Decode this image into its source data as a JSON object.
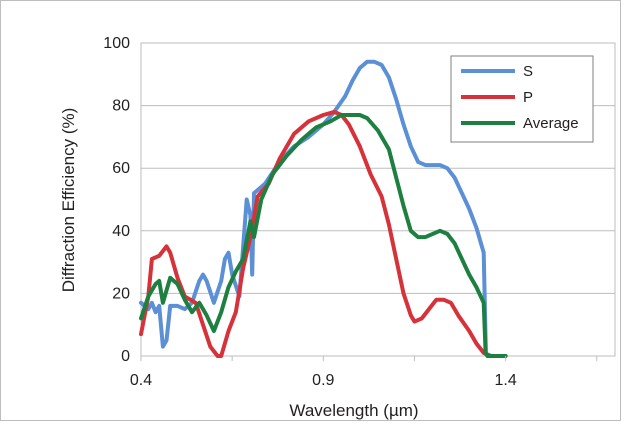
{
  "chart_data": {
    "type": "line",
    "title": "",
    "xlabel": "Wavelength (µm)",
    "ylabel": "Diffraction Efficiency (%)",
    "xlim": [
      0.4,
      1.7
    ],
    "ylim": [
      0,
      100
    ],
    "x_ticks": [
      0.4,
      0.9,
      1.4
    ],
    "x_tick_labels": [
      "0.4",
      "0.9",
      "1.4"
    ],
    "y_ticks": [
      0,
      20,
      40,
      60,
      80,
      100
    ],
    "y_tick_labels": [
      "0",
      "20",
      "40",
      "60",
      "80",
      "100"
    ],
    "grid": "horizontal",
    "legend_position": "top-right",
    "series": [
      {
        "name": "S",
        "color": "#5b8fd6",
        "points": [
          [
            0.4,
            17
          ],
          [
            0.42,
            15
          ],
          [
            0.43,
            17
          ],
          [
            0.44,
            14
          ],
          [
            0.45,
            16
          ],
          [
            0.46,
            3
          ],
          [
            0.47,
            5
          ],
          [
            0.48,
            16
          ],
          [
            0.5,
            16
          ],
          [
            0.52,
            15
          ],
          [
            0.54,
            17
          ],
          [
            0.56,
            24
          ],
          [
            0.57,
            26
          ],
          [
            0.58,
            24
          ],
          [
            0.6,
            17
          ],
          [
            0.62,
            24
          ],
          [
            0.63,
            31
          ],
          [
            0.64,
            33
          ],
          [
            0.65,
            26
          ],
          [
            0.67,
            19
          ],
          [
            0.69,
            50
          ],
          [
            0.7,
            45
          ],
          [
            0.705,
            26
          ],
          [
            0.71,
            52
          ],
          [
            0.74,
            55
          ],
          [
            0.78,
            62
          ],
          [
            0.82,
            67
          ],
          [
            0.86,
            70
          ],
          [
            0.9,
            74
          ],
          [
            0.93,
            78
          ],
          [
            0.96,
            83
          ],
          [
            0.98,
            88
          ],
          [
            1.0,
            92
          ],
          [
            1.02,
            94
          ],
          [
            1.04,
            94
          ],
          [
            1.06,
            93
          ],
          [
            1.08,
            89
          ],
          [
            1.1,
            82
          ],
          [
            1.12,
            74
          ],
          [
            1.14,
            67
          ],
          [
            1.16,
            62
          ],
          [
            1.18,
            61
          ],
          [
            1.22,
            61
          ],
          [
            1.24,
            60
          ],
          [
            1.26,
            57
          ],
          [
            1.28,
            52
          ],
          [
            1.3,
            47
          ],
          [
            1.32,
            41
          ],
          [
            1.34,
            33
          ],
          [
            1.346,
            1
          ],
          [
            1.35,
            0
          ],
          [
            1.38,
            0
          ],
          [
            1.4,
            0
          ]
        ]
      },
      {
        "name": "P",
        "color": "#d6323a",
        "points": [
          [
            0.4,
            7
          ],
          [
            0.42,
            19
          ],
          [
            0.43,
            31
          ],
          [
            0.45,
            32
          ],
          [
            0.47,
            35
          ],
          [
            0.48,
            33
          ],
          [
            0.5,
            25
          ],
          [
            0.52,
            19
          ],
          [
            0.55,
            17
          ],
          [
            0.57,
            10
          ],
          [
            0.59,
            3
          ],
          [
            0.61,
            0
          ],
          [
            0.62,
            0
          ],
          [
            0.64,
            8
          ],
          [
            0.66,
            14
          ],
          [
            0.68,
            28
          ],
          [
            0.7,
            38
          ],
          [
            0.72,
            51
          ],
          [
            0.75,
            55
          ],
          [
            0.78,
            63
          ],
          [
            0.82,
            71
          ],
          [
            0.86,
            75
          ],
          [
            0.9,
            77
          ],
          [
            0.93,
            78
          ],
          [
            0.95,
            77
          ],
          [
            0.97,
            74
          ],
          [
            1.0,
            67
          ],
          [
            1.03,
            58
          ],
          [
            1.06,
            51
          ],
          [
            1.08,
            42
          ],
          [
            1.1,
            31
          ],
          [
            1.12,
            20
          ],
          [
            1.14,
            13
          ],
          [
            1.15,
            11
          ],
          [
            1.17,
            12
          ],
          [
            1.19,
            15
          ],
          [
            1.21,
            18
          ],
          [
            1.23,
            18
          ],
          [
            1.25,
            17
          ],
          [
            1.27,
            13
          ],
          [
            1.3,
            8
          ],
          [
            1.32,
            4
          ],
          [
            1.34,
            1
          ],
          [
            1.36,
            0
          ],
          [
            1.4,
            0
          ]
        ]
      },
      {
        "name": "Average",
        "color": "#1d8040",
        "points": [
          [
            0.4,
            12
          ],
          [
            0.42,
            19
          ],
          [
            0.44,
            23
          ],
          [
            0.45,
            24
          ],
          [
            0.46,
            17
          ],
          [
            0.48,
            25
          ],
          [
            0.5,
            23
          ],
          [
            0.52,
            18
          ],
          [
            0.54,
            14
          ],
          [
            0.56,
            17
          ],
          [
            0.58,
            13
          ],
          [
            0.6,
            8
          ],
          [
            0.62,
            14
          ],
          [
            0.64,
            22
          ],
          [
            0.66,
            27
          ],
          [
            0.68,
            31
          ],
          [
            0.7,
            43
          ],
          [
            0.71,
            38
          ],
          [
            0.73,
            50
          ],
          [
            0.76,
            58
          ],
          [
            0.8,
            64
          ],
          [
            0.84,
            69
          ],
          [
            0.88,
            73
          ],
          [
            0.92,
            75
          ],
          [
            0.95,
            77
          ],
          [
            0.98,
            77
          ],
          [
            1.0,
            77
          ],
          [
            1.02,
            76
          ],
          [
            1.05,
            72
          ],
          [
            1.08,
            66
          ],
          [
            1.1,
            57
          ],
          [
            1.12,
            48
          ],
          [
            1.14,
            40
          ],
          [
            1.16,
            38
          ],
          [
            1.18,
            38
          ],
          [
            1.2,
            39
          ],
          [
            1.22,
            40
          ],
          [
            1.24,
            39
          ],
          [
            1.26,
            36
          ],
          [
            1.28,
            31
          ],
          [
            1.3,
            26
          ],
          [
            1.32,
            22
          ],
          [
            1.34,
            17
          ],
          [
            1.345,
            1
          ],
          [
            1.35,
            0
          ],
          [
            1.4,
            0
          ]
        ]
      }
    ]
  }
}
